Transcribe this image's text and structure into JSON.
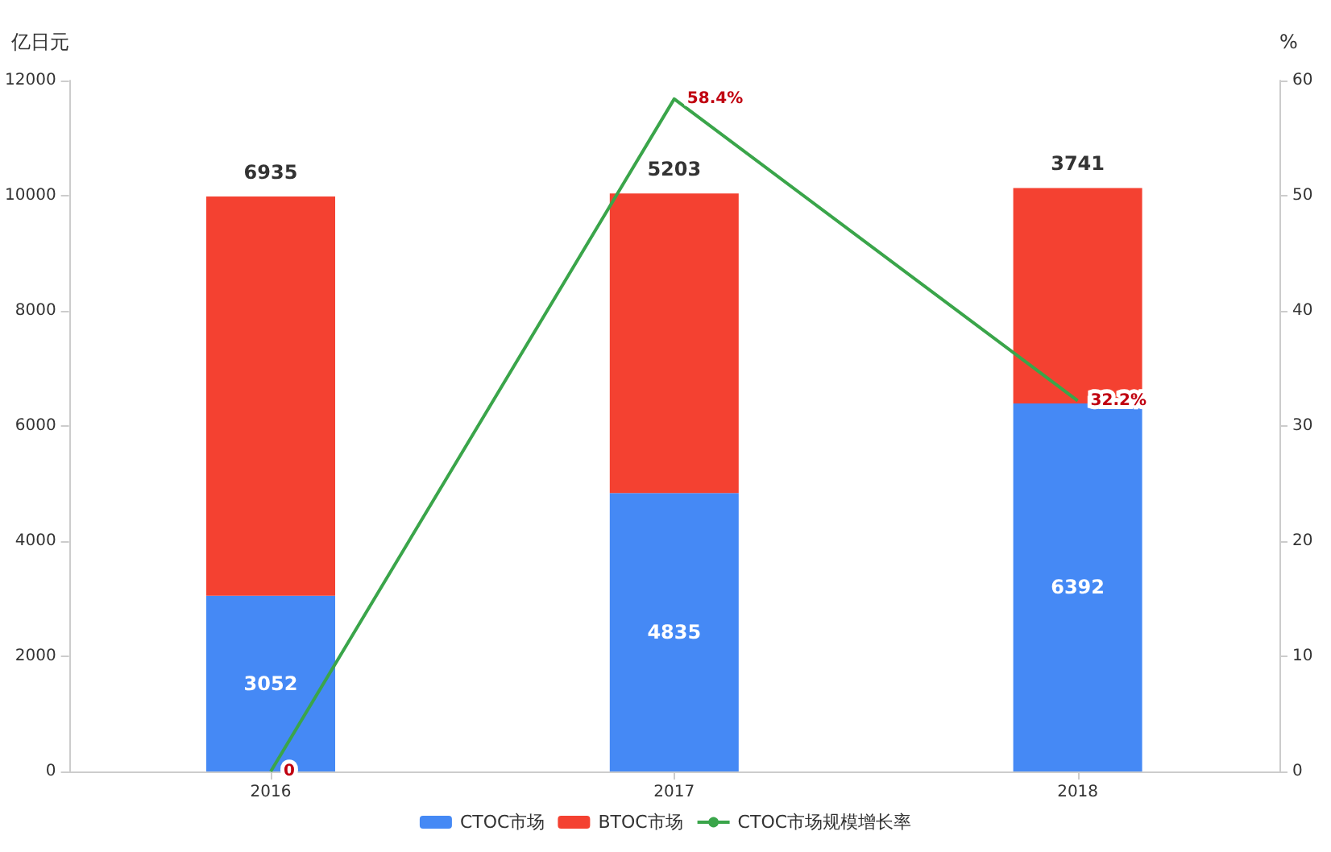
{
  "chart_data": {
    "type": "bar",
    "stacked": true,
    "ylabel": "亿日元",
    "y2label": "%",
    "categories": [
      "2016",
      "2017",
      "2018"
    ],
    "series": [
      {
        "name": "CTOC市场",
        "color": "#4589f5",
        "values": [
          3052,
          4835,
          6392
        ],
        "value_labels": [
          "3052",
          "4835",
          "6392"
        ]
      },
      {
        "name": "BTOC市场",
        "color": "#f44131",
        "values": [
          6935,
          5203,
          3741
        ],
        "value_labels": [
          "6935",
          "5203",
          "3741"
        ]
      },
      {
        "name": "CTOC市场规模增长率",
        "type": "line",
        "axis": "y2",
        "color": "#3aa54a",
        "values": [
          0,
          58.4,
          32.2
        ],
        "value_labels": [
          "0",
          "58.4%",
          "32.2%"
        ]
      }
    ],
    "ylim": [
      0,
      12000
    ],
    "yticks": [
      0,
      2000,
      4000,
      6000,
      8000,
      10000,
      12000
    ],
    "y2lim": [
      0,
      60
    ],
    "y2ticks": [
      0,
      10,
      20,
      30,
      40,
      50,
      60
    ],
    "grid": false,
    "legend": "bottom",
    "marker": "none"
  }
}
